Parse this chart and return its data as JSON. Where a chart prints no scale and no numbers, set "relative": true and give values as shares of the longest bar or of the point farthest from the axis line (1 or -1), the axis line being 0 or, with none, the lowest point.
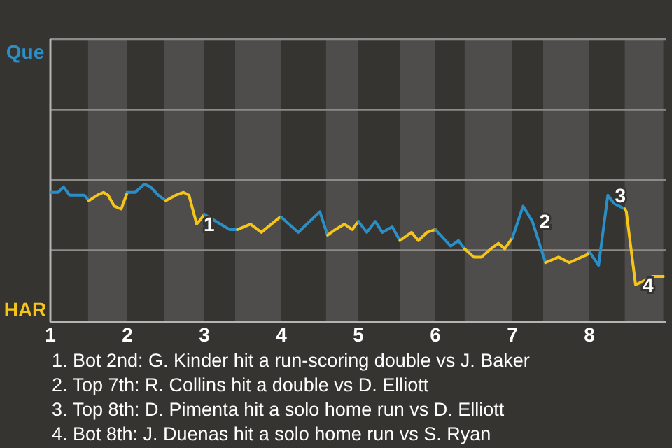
{
  "chart_data": {
    "type": "line",
    "relative": true,
    "series": [
      {
        "color": "#2a8fc7",
        "x": [
          1.0,
          1.1,
          1.17,
          1.25,
          1.44,
          1.5
        ],
        "values": [
          0.94,
          0.94,
          0.98,
          0.92,
          0.92,
          0.88
        ]
      },
      {
        "color": "#f5c518",
        "x": [
          1.5,
          1.61,
          1.69,
          1.75,
          1.83,
          1.92,
          2.0
        ],
        "values": [
          0.88,
          0.92,
          0.94,
          0.92,
          0.84,
          0.82,
          0.94
        ]
      },
      {
        "color": "#2a8fc7",
        "x": [
          2.0,
          2.1,
          2.22,
          2.3,
          2.4,
          2.5
        ],
        "values": [
          0.94,
          0.94,
          1,
          0.98,
          0.92,
          0.88
        ]
      },
      {
        "color": "#f5c518",
        "x": [
          2.5,
          2.63,
          2.73,
          2.8,
          2.9,
          2.93,
          3.0
        ],
        "values": [
          0.88,
          0.92,
          0.94,
          0.92,
          0.71,
          0.73,
          0.78
        ]
      },
      {
        "color": "#2a8fc7",
        "x": [
          3.0,
          3.21,
          3.33,
          3.43
        ],
        "values": [
          0.78,
          0.71,
          0.67,
          0.67
        ]
      },
      {
        "color": "#f5c518",
        "x": [
          3.43,
          3.6,
          3.74,
          3.98,
          4.0
        ],
        "values": [
          0.67,
          0.71,
          0.65,
          0.76,
          0.76
        ]
      },
      {
        "color": "#2a8fc7",
        "x": [
          4.0,
          4.22,
          4.33,
          4.5,
          4.6
        ],
        "values": [
          0.76,
          0.65,
          0.71,
          0.8,
          0.63
        ]
      },
      {
        "color": "#f5c518",
        "x": [
          4.6,
          4.7,
          4.82,
          4.92,
          5.0
        ],
        "values": [
          0.63,
          0.67,
          0.71,
          0.67,
          0.73
        ]
      },
      {
        "color": "#2a8fc7",
        "x": [
          5.0,
          5.11,
          5.22,
          5.31,
          5.44,
          5.54
        ],
        "values": [
          0.73,
          0.65,
          0.73,
          0.65,
          0.69,
          0.59
        ]
      },
      {
        "color": "#f5c518",
        "x": [
          5.54,
          5.69,
          5.78,
          5.89,
          6.0
        ],
        "values": [
          0.59,
          0.65,
          0.59,
          0.65,
          0.67
        ]
      },
      {
        "color": "#2a8fc7",
        "x": [
          6.0,
          6.1,
          6.2,
          6.3,
          6.38
        ],
        "values": [
          0.67,
          0.61,
          0.55,
          0.59,
          0.53
        ]
      },
      {
        "color": "#f5c518",
        "x": [
          6.38,
          6.5,
          6.6,
          6.72,
          6.82,
          6.9,
          7.0
        ],
        "values": [
          0.53,
          0.47,
          0.47,
          0.53,
          0.57,
          0.53,
          0.61
        ]
      },
      {
        "color": "#2a8fc7",
        "x": [
          7.0,
          7.14,
          7.26,
          7.43
        ],
        "values": [
          0.61,
          0.84,
          0.73,
          0.43
        ]
      },
      {
        "color": "#f5c518",
        "x": [
          7.43,
          7.6,
          7.74,
          7.98,
          8.0
        ],
        "values": [
          0.43,
          0.47,
          0.43,
          0.49,
          0.51
        ]
      },
      {
        "color": "#2a8fc7",
        "x": [
          8.0,
          8.12,
          8.24,
          8.32,
          8.46
        ],
        "values": [
          0.51,
          0.41,
          0.92,
          0.86,
          0.82
        ]
      },
      {
        "color": "#f5c518",
        "x": [
          8.46,
          8.48,
          8.6,
          8.68,
          8.82,
          8.96
        ],
        "values": [
          0.82,
          0.8,
          0.27,
          0.29,
          0.33,
          0.33
        ]
      }
    ],
    "xlim": [
      1,
      9
    ],
    "xticks": [
      1,
      2,
      3,
      4,
      5,
      6,
      7,
      8
    ],
    "ref_lines": [
      {
        "axis": "y",
        "value": 0.52,
        "color": "#8c8b89"
      },
      {
        "axis": "y",
        "value": 1.03,
        "color": "#8c8b89"
      },
      {
        "axis": "y",
        "value": 1.54,
        "color": "#8c8b89"
      }
    ],
    "marker": "none",
    "bands": [
      {
        "axis": "x",
        "from": 1.49,
        "to": 2,
        "color": "#4e4d4b"
      },
      {
        "axis": "x",
        "from": 2.48,
        "to": 3,
        "color": "#4e4d4b"
      },
      {
        "axis": "x",
        "from": 3.4,
        "to": 4,
        "color": "#4e4d4b"
      },
      {
        "axis": "x",
        "from": 4.58,
        "to": 5,
        "color": "#4e4d4b"
      },
      {
        "axis": "x",
        "from": 5.54,
        "to": 6,
        "color": "#4e4d4b"
      },
      {
        "axis": "x",
        "from": 6.38,
        "to": 7,
        "color": "#4e4d4b"
      },
      {
        "axis": "x",
        "from": 7.4,
        "to": 8,
        "color": "#4e4d4b"
      },
      {
        "axis": "x",
        "from": 8.46,
        "to": 8.96,
        "color": "#4e4d4b"
      }
    ],
    "annotations": [
      "Que",
      "HAR",
      {
        "text": "1",
        "x": 2.9,
        "y": 0.71
      },
      {
        "text": "2",
        "x": 7.26,
        "y": 0.73
      },
      {
        "text": "3",
        "x": 8.24,
        "y": 0.92
      },
      {
        "text": "4",
        "x": 8.6,
        "y": 0.27
      },
      "1. Bot 2nd: G. Kinder hit a run-scoring double vs J. Baker",
      "2. Top 7th: R. Collins hit a double vs D. Elliott",
      "3. Top 8th: D. Pimenta hit a solo home run vs D. Elliott",
      "4. Bot 8th: J. Duenas hit a solo home run vs S. Ryan"
    ]
  }
}
